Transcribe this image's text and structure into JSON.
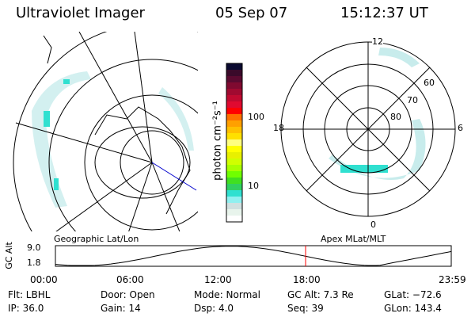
{
  "header": {
    "instrument": "Ultraviolet Imager",
    "date": "05 Sep 07",
    "time": "15:12:37 UT"
  },
  "left_panel": {
    "label": "Geographic Lat/Lon"
  },
  "right_panel": {
    "label": "Apex MLat/MLT",
    "mlt_labels": [
      "12",
      "18",
      "6",
      "0"
    ],
    "lat_labels": [
      "60",
      "70",
      "80"
    ]
  },
  "colorbar": {
    "label": "photon cm⁻²s⁻¹",
    "ticks": [
      "100",
      "10"
    ],
    "scale": "log",
    "colors": [
      "#0a0a30",
      "#3a0a2a",
      "#5a0a30",
      "#800a30",
      "#a00a30",
      "#c00a30",
      "#e00a30",
      "#ff0000",
      "#ff7000",
      "#ffa000",
      "#ffc000",
      "#ffe000",
      "#ffff80",
      "#ffff00",
      "#e8f000",
      "#d0ff00",
      "#a8ff00",
      "#70ff00",
      "#40e020",
      "#30d060",
      "#30e0d0",
      "#90f0f0",
      "#d0e0e0",
      "#e8f4ec",
      "#ffffff"
    ]
  },
  "altitude_plot": {
    "ylabel": "GC Alt",
    "yticks": [
      "9.0",
      "1.8"
    ],
    "xticks": [
      "00:00",
      "06:00",
      "12:00",
      "18:00",
      "23:59"
    ],
    "current_time_marker": "15:12",
    "marker_color": "#ff0000"
  },
  "info": [
    [
      "Flt: LBHL",
      "Door: Open",
      "Mode: Normal",
      "GC Alt: 7.3 Re",
      "GLat: −72.6"
    ],
    [
      "IP: 36.0",
      "Gain: 14",
      "Dsp:    4.0",
      "Seq: 39",
      "GLon: 143.4"
    ]
  ]
}
